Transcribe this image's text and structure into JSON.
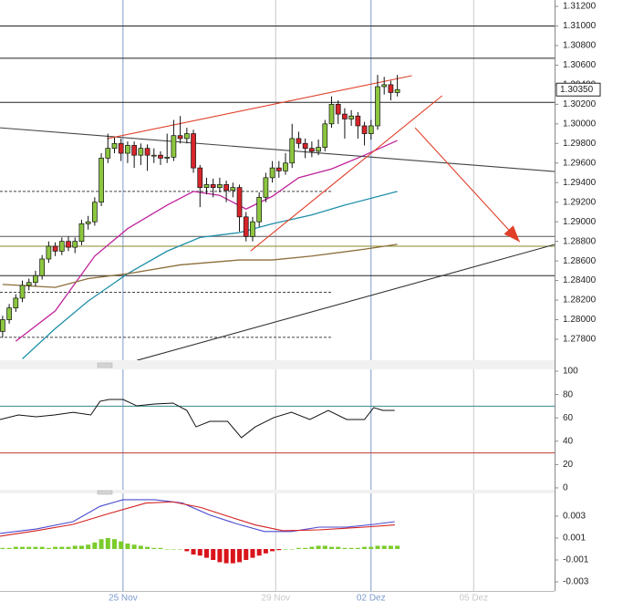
{
  "chart_data": [
    {
      "type": "candlestick",
      "categories": [
        null,
        null,
        null,
        null,
        null,
        null,
        null,
        null,
        null,
        null,
        null,
        null,
        null,
        null,
        null,
        null,
        null,
        null,
        null,
        null,
        null,
        null,
        null,
        null,
        null,
        null,
        null,
        null,
        null,
        null,
        null,
        null,
        null,
        null,
        null,
        null,
        null,
        null,
        null,
        null,
        null,
        null,
        null,
        null,
        null,
        null,
        null,
        null,
        null,
        null,
        null,
        null,
        null,
        null,
        null,
        null,
        null,
        null,
        null,
        null,
        null
      ],
      "open": [
        1.2788,
        1.28,
        1.2812,
        1.2822,
        1.2835,
        1.2838,
        1.2845,
        1.2862,
        1.2875,
        1.287,
        1.288,
        1.2874,
        1.288,
        1.2898,
        1.29,
        1.292,
        1.2965,
        1.2975,
        1.298,
        1.297,
        1.2978,
        1.2968,
        1.2975,
        1.2968,
        1.2968,
        1.2965,
        1.2966,
        1.2988,
        1.2985,
        1.299,
        1.2955,
        1.2935,
        1.2938,
        1.2935,
        1.2938,
        1.2932,
        1.2935,
        1.2905,
        1.2885,
        1.29,
        1.2925,
        1.2945,
        1.2955,
        1.2952,
        1.296,
        1.2985,
        1.298,
        1.2975,
        1.2972,
        1.2976,
        1.3,
        1.302,
        1.301,
        1.3005,
        1.3008,
        1.2998,
        1.299,
        1.2998,
        1.3038,
        1.304,
        1.3032
      ],
      "high": [
        1.2804,
        1.2816,
        1.2826,
        1.284,
        1.2842,
        1.285,
        1.2866,
        1.288,
        1.2879,
        1.2884,
        1.2885,
        1.2884,
        1.2902,
        1.2906,
        1.2925,
        1.297,
        1.299,
        1.2986,
        1.2985,
        1.2982,
        1.2982,
        1.298,
        1.2979,
        1.2975,
        1.2972,
        1.299,
        1.3004,
        1.3008,
        1.2996,
        1.2994,
        1.2958,
        1.2945,
        1.2944,
        1.2945,
        1.2942,
        1.294,
        1.2938,
        1.291,
        1.2905,
        1.293,
        1.295,
        1.2962,
        1.2962,
        1.297,
        1.3,
        1.2992,
        1.2985,
        1.2982,
        1.2984,
        1.3004,
        1.3028,
        1.3024,
        1.3016,
        1.3014,
        1.3012,
        1.3002,
        1.3004,
        1.305,
        1.3048,
        1.3044,
        1.305
      ],
      "low": [
        1.2782,
        1.2796,
        1.2808,
        1.2818,
        1.283,
        1.2834,
        1.2841,
        1.2858,
        1.2865,
        1.2866,
        1.287,
        1.2868,
        1.2876,
        1.2892,
        1.2896,
        1.2916,
        1.296,
        1.297,
        1.2962,
        1.296,
        1.2955,
        1.2958,
        1.2952,
        1.296,
        1.2958,
        1.296,
        1.2962,
        1.298,
        1.298,
        1.295,
        1.2915,
        1.2928,
        1.2925,
        1.293,
        1.292,
        1.2925,
        1.289,
        1.288,
        1.288,
        1.2895,
        1.292,
        1.294,
        1.2945,
        1.2948,
        1.2955,
        1.2975,
        1.2965,
        1.2966,
        1.2968,
        1.2972,
        1.2996,
        1.3,
        1.2985,
        1.2998,
        1.2985,
        1.2978,
        1.2984,
        1.2994,
        1.303,
        1.3024,
        1.3028
      ],
      "close": [
        1.28,
        1.2812,
        1.2822,
        1.2835,
        1.2838,
        1.2845,
        1.2862,
        1.2875,
        1.287,
        1.288,
        1.2874,
        1.288,
        1.2898,
        1.29,
        1.292,
        1.2965,
        1.2975,
        1.298,
        1.297,
        1.2978,
        1.2968,
        1.2975,
        1.2968,
        1.2968,
        1.2965,
        1.2966,
        1.2988,
        1.2985,
        1.299,
        1.2955,
        1.2935,
        1.2938,
        1.2935,
        1.2938,
        1.2932,
        1.2935,
        1.2905,
        1.2885,
        1.29,
        1.2925,
        1.2945,
        1.2955,
        1.2952,
        1.296,
        1.2985,
        1.298,
        1.2975,
        1.2972,
        1.2976,
        1.3,
        1.302,
        1.301,
        1.3005,
        1.3008,
        1.2998,
        1.299,
        1.2998,
        1.3038,
        1.304,
        1.3032,
        1.3035
      ],
      "up_color": "#8cc63f",
      "down_color": "#d7262b",
      "series": [
        {
          "color": "#c0239b",
          "x": [
            2,
            8,
            14,
            19,
            25,
            29,
            33,
            37,
            41,
            45,
            50,
            55,
            60
          ],
          "values": [
            1.2778,
            1.2809,
            1.2865,
            1.2893,
            1.2917,
            1.2931,
            1.2927,
            1.2913,
            1.2926,
            1.2945,
            1.2954,
            1.2968,
            1.2983
          ]
        },
        {
          "color": "#1f8fa8",
          "x": [
            3,
            8,
            13,
            19,
            25,
            30,
            36,
            41,
            47,
            52,
            60
          ],
          "values": [
            1.276,
            1.2791,
            1.2819,
            1.2847,
            1.287,
            1.2884,
            1.2889,
            1.2898,
            1.2907,
            1.2917,
            1.2931
          ]
        },
        {
          "color": "#8b6d3a",
          "x": [
            0,
            8,
            13,
            19,
            27,
            36,
            41,
            47,
            55,
            60
          ],
          "values": [
            1.2836,
            1.2833,
            1.2842,
            1.2847,
            1.2856,
            1.2861,
            1.2861,
            1.2865,
            1.2872,
            1.2877
          ]
        }
      ],
      "horizontal_lines": [
        {
          "value": 1.31,
          "color": "#222222"
        },
        {
          "value": 1.3067,
          "color": "#222222"
        },
        {
          "value": 1.3022,
          "color": "#222222"
        },
        {
          "value": 1.2885,
          "color": "#555555"
        },
        {
          "value": 1.2875,
          "color": "#8a8a2a"
        },
        {
          "value": 1.2845,
          "color": "#222222"
        },
        {
          "value": 1.2931,
          "color": "#444444",
          "dashed": true,
          "x_end": 50.2
        },
        {
          "value": 1.2828,
          "color": "#444444",
          "dashed": true,
          "x_end": 50.2
        },
        {
          "value": 1.2782,
          "color": "#444444",
          "dashed": true,
          "x_end": 50.2
        }
      ],
      "trend_lines": [
        {
          "x": [
            -0.4,
            83.9
          ],
          "values": [
            1.2996,
            1.29513
          ],
          "color": "#444444"
        },
        {
          "x": [
            15.9,
            62.2
          ],
          "values": [
            1.29849,
            1.30492
          ],
          "color": "#e0402a"
        },
        {
          "x": [
            37.7,
            66.8
          ],
          "values": [
            1.28702,
            1.30287
          ],
          "color": "#e0402a"
        },
        {
          "x": [
            20.4,
            83.9
          ],
          "values": [
            1.27584,
            1.28768
          ],
          "color": "#333333"
        },
        {
          "x": [
            62.7,
            78.6
          ],
          "values": [
            1.2996,
            1.28795
          ],
          "color": "#e0402a",
          "arrow": true
        }
      ],
      "last_price": {
        "value": 1.3035,
        "label": "1.30350"
      },
      "xlim": [
        -0.4,
        83.9
      ],
      "ylim": [
        1.27586,
        1.31265
      ],
      "yticks": [
        {
          "value": 1.312,
          "label": "1.31200"
        },
        {
          "value": 1.31,
          "label": "1.31000"
        },
        {
          "value": 1.308,
          "label": "1.30800"
        },
        {
          "value": 1.306,
          "label": "1.30600"
        },
        {
          "value": 1.304,
          "label": "1.30400"
        },
        {
          "value": 1.302,
          "label": "1.30200"
        },
        {
          "value": 1.3,
          "label": "1.30000"
        },
        {
          "value": 1.298,
          "label": "1.29800"
        },
        {
          "value": 1.296,
          "label": "1.29600"
        },
        {
          "value": 1.294,
          "label": "1.29400"
        },
        {
          "value": 1.292,
          "label": "1.29200"
        },
        {
          "value": 1.29,
          "label": "1.29000"
        },
        {
          "value": 1.288,
          "label": "1.28800"
        },
        {
          "value": 1.286,
          "label": "1.28600"
        },
        {
          "value": 1.284,
          "label": "1.28400"
        },
        {
          "value": 1.282,
          "label": "1.28200"
        },
        {
          "value": 1.28,
          "label": "1.28000"
        },
        {
          "value": 1.278,
          "label": "1.27800"
        }
      ]
    },
    {
      "type": "line",
      "series": [
        {
          "color": "#111111",
          "x": [
            -0.4,
            2.4,
            5.1,
            7.9,
            10.7,
            13.4,
            14.8,
            16.2,
            18.3,
            20.4,
            23.1,
            25.9,
            28,
            29.4,
            31.5,
            34.2,
            36.3,
            38.4,
            41.2,
            43.9,
            46.7,
            49.5,
            52.3,
            55,
            56.4,
            57.8,
            59.6
          ],
          "values": [
            58.6,
            62.5,
            60.9,
            62.5,
            64.8,
            62.5,
            74.2,
            75.8,
            75.8,
            70.3,
            71.9,
            72.7,
            66.4,
            52.3,
            57,
            57,
            43,
            52.3,
            60.2,
            64.8,
            58.6,
            66.4,
            58.6,
            58.6,
            68.8,
            66.4,
            66.4
          ]
        }
      ],
      "levels": [
        {
          "value": 70,
          "color": "#3a8a8a"
        },
        {
          "value": 30,
          "color": "#c0392b"
        }
      ],
      "xlim": [
        -0.4,
        83.9
      ],
      "ylim": [
        -1.6,
        101.6
      ],
      "yticks": [
        100,
        80,
        60,
        40,
        20,
        0
      ]
    },
    {
      "type": "macd",
      "histogram": [
        0.0001,
        0.0001,
        0.0002,
        0.0002,
        0.0002,
        0.0002,
        0.0002,
        0.0001,
        0.0002,
        0.0002,
        0.0002,
        0.0003,
        0.0003,
        0.0004,
        0.0006,
        0.0009,
        0.001,
        0.0009,
        0.0007,
        0.0005,
        0.0004,
        0.0003,
        0.0002,
        0.0001,
        0.0001,
        0,
        0,
        0,
        -0.0002,
        -0.0005,
        -0.0006,
        -0.0008,
        -0.001,
        -0.0012,
        -0.0013,
        -0.0013,
        -0.0012,
        -0.001,
        -0.0008,
        -0.0006,
        -0.0004,
        -0.0002,
        -0.0001,
        0,
        0,
        0.0001,
        0.0001,
        0.0002,
        0.0003,
        0.0003,
        0.0002,
        0.0002,
        0.0001,
        0.0001,
        0.0001,
        0.0002,
        0.0002,
        0.0003,
        0.0003,
        0.0003,
        0.0003
      ],
      "positive_color": "#7ccc2c",
      "negative_color": "#d9141b",
      "series": [
        {
          "color": "#4a4ad0",
          "x": [
            -0.4,
            5.1,
            10.7,
            14.8,
            18.3,
            23.1,
            27.3,
            31.5,
            35.6,
            39.8,
            43.9,
            48.1,
            52.3,
            56.4,
            59.6
          ],
          "values": [
            0.00142,
            0.00183,
            0.0025,
            0.0039,
            0.0045,
            0.0045,
            0.0042,
            0.0031,
            0.0023,
            0.0016,
            0.0016,
            0.002,
            0.002,
            0.00225,
            0.0025
          ]
        },
        {
          "color": "#d42020",
          "x": [
            -0.4,
            5.1,
            10.7,
            16.2,
            21.8,
            25.9,
            30.1,
            34.2,
            38.4,
            42.6,
            48.1,
            55,
            59.6
          ],
          "values": [
            0.00117,
            0.00167,
            0.00225,
            0.00325,
            0.0042,
            0.0043,
            0.0038,
            0.003,
            0.0022,
            0.00167,
            0.00175,
            0.002,
            0.0022
          ]
        }
      ],
      "xlim": [
        -0.4,
        83.9
      ],
      "ylim": [
        -0.00383,
        0.00508
      ],
      "yticks": [
        0.003,
        0.001,
        -0.001,
        -0.003
      ],
      "xticks": [
        {
          "value": 18.3,
          "label": "25 Nov",
          "color": "#7d9ad0"
        },
        {
          "value": 41.5,
          "label": "29 Nov",
          "color": "#c8c8c8"
        },
        {
          "value": 56,
          "label": "02 Dez",
          "color": "#7d9ad0"
        },
        {
          "value": 71.6,
          "label": "05 Dez",
          "color": "#c8c8c8"
        }
      ]
    }
  ]
}
